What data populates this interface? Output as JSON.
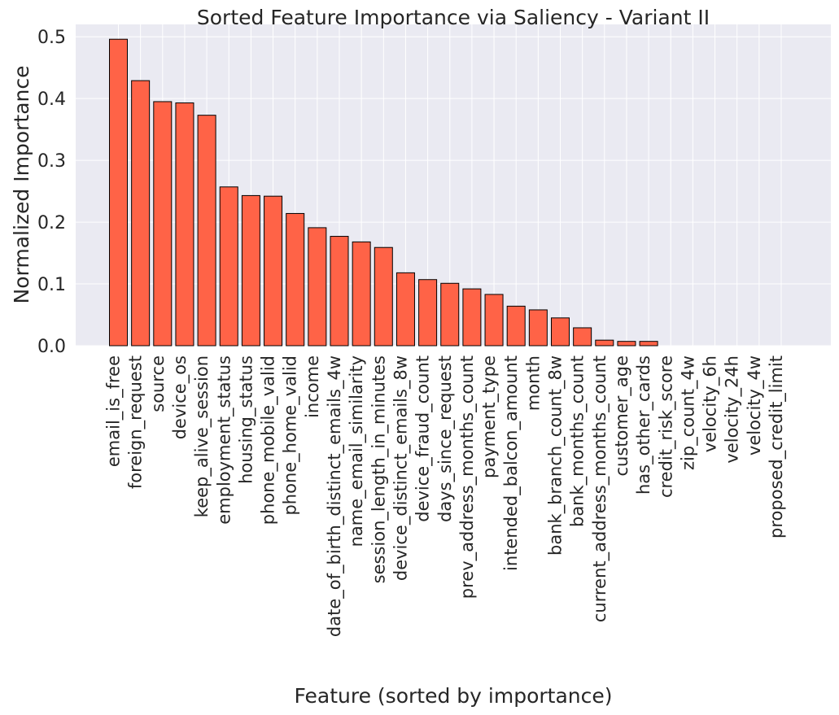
{
  "chart_data": {
    "type": "bar",
    "title": "Sorted Feature Importance via Saliency - Variant II",
    "xlabel": "Feature (sorted by importance)",
    "ylabel": "Normalized Importance",
    "ylim": [
      0,
      0.52
    ],
    "yticks": [
      "0.0",
      "0.1",
      "0.2",
      "0.3",
      "0.4",
      "0.5"
    ],
    "grid": true,
    "bar_color": "#ff6347",
    "bar_edge_color": "#000000",
    "background_color": "#eaeaf2",
    "categories": [
      "email_is_free",
      "foreign_request",
      "source",
      "device_os",
      "keep_alive_session",
      "employment_status",
      "housing_status",
      "phone_mobile_valid",
      "phone_home_valid",
      "income",
      "date_of_birth_distinct_emails_4w",
      "name_email_similarity",
      "session_length_in_minutes",
      "device_distinct_emails_8w",
      "device_fraud_count",
      "days_since_request",
      "prev_address_months_count",
      "payment_type",
      "intended_balcon_amount",
      "month",
      "bank_branch_count_8w",
      "bank_months_count",
      "current_address_months_count",
      "customer_age",
      "has_other_cards",
      "credit_risk_score",
      "zip_count_4w",
      "velocity_6h",
      "velocity_24h",
      "velocity_4w",
      "proposed_credit_limit"
    ],
    "values": [
      0.496,
      0.429,
      0.395,
      0.393,
      0.373,
      0.257,
      0.243,
      0.242,
      0.214,
      0.191,
      0.177,
      0.168,
      0.159,
      0.118,
      0.107,
      0.101,
      0.092,
      0.083,
      0.064,
      0.058,
      0.045,
      0.029,
      0.009,
      0.007,
      0.007,
      0.0,
      0.0,
      0.0,
      0.0,
      0.0,
      0.0
    ]
  }
}
